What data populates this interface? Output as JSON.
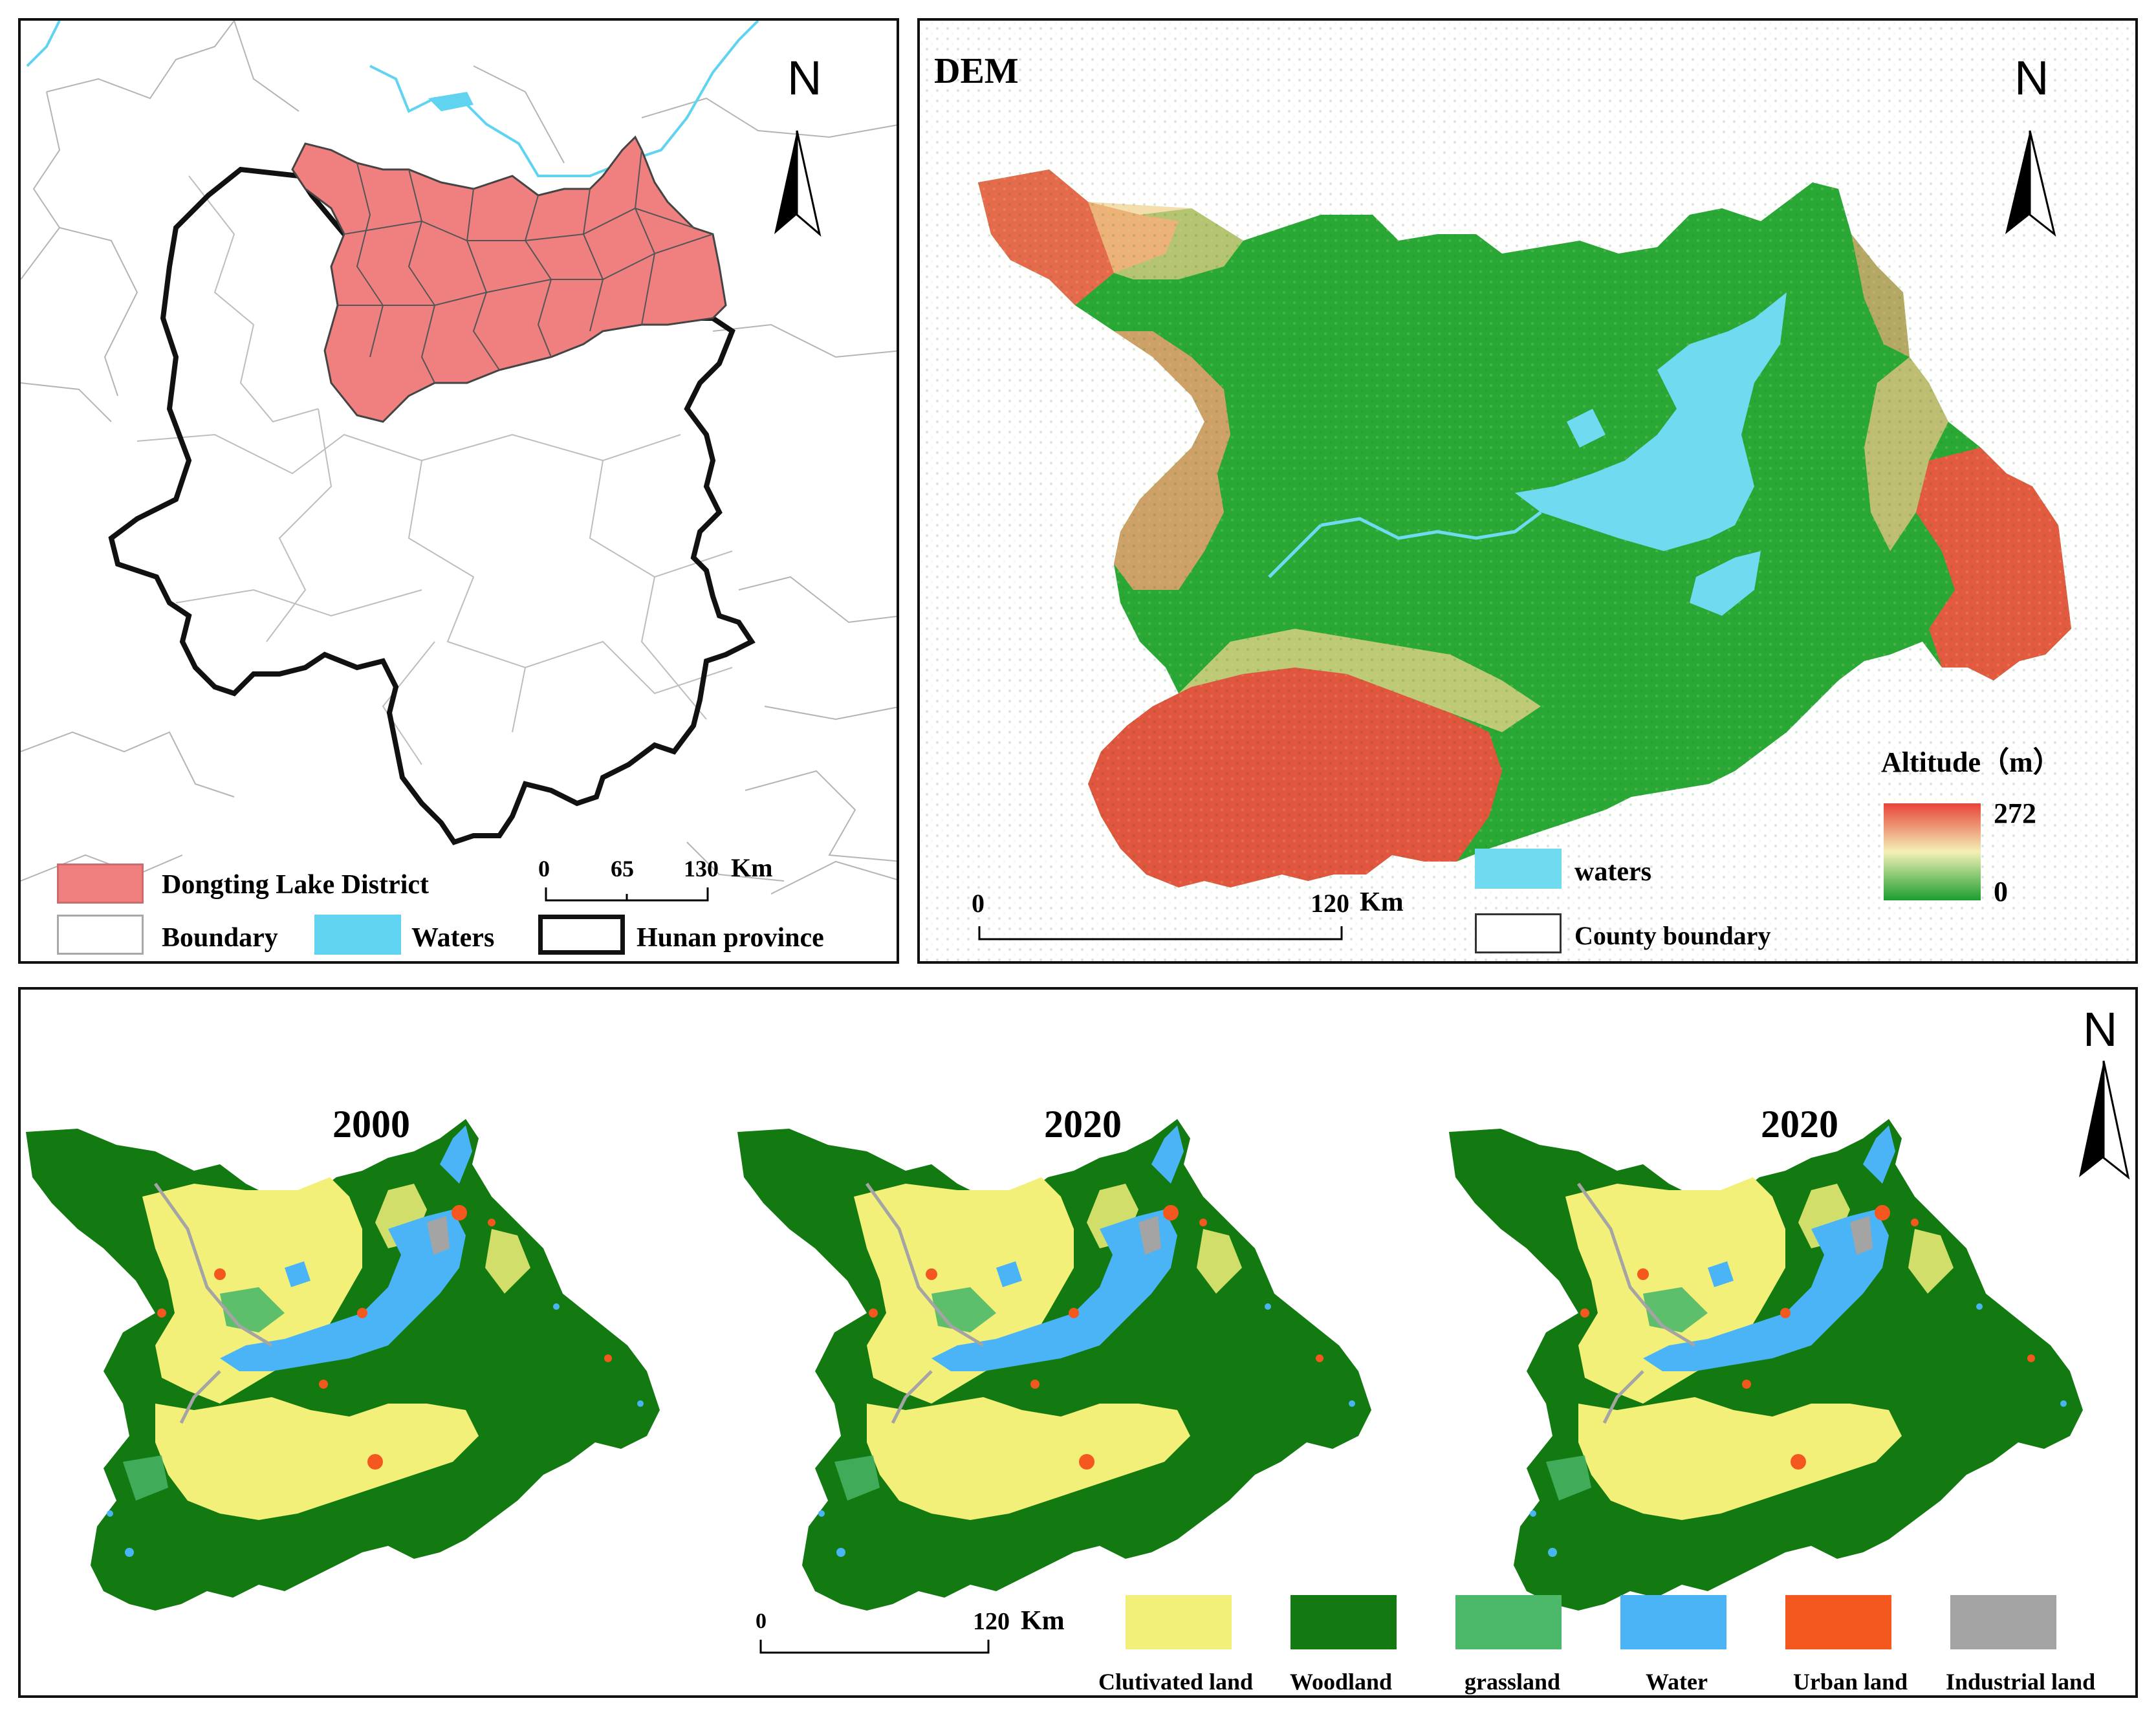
{
  "panel_location": {
    "north_label": "N",
    "legend": {
      "dongting": "Dongting Lake District",
      "boundary": "Boundary",
      "waters": "Waters",
      "hunan": "Hunan province"
    },
    "scale": {
      "ticks": [
        "0",
        "65",
        "130"
      ],
      "unit": "Km"
    },
    "colors": {
      "dongting": "#f08080",
      "waters": "#5fd3f0",
      "hunan_outline": "#111111"
    }
  },
  "panel_dem": {
    "title": "DEM",
    "north_label": "N",
    "legend": {
      "title": "Altitude（m）",
      "max": "272",
      "min": "0",
      "waters": "waters",
      "county": "County boundary"
    },
    "scale": {
      "ticks": [
        "0",
        "120"
      ],
      "unit": "Km"
    },
    "colors": {
      "high": "#e8433a",
      "mid": "#f4f0b6",
      "low": "#1a9e2e",
      "waters": "#6fdaf0"
    }
  },
  "panel_landuse": {
    "north_label": "N",
    "maps": [
      {
        "year": "2000"
      },
      {
        "year": "2020"
      },
      {
        "year": "2020"
      }
    ],
    "scale": {
      "ticks": [
        "0",
        "120"
      ],
      "unit": "Km"
    },
    "legend": [
      {
        "label": "Clutivated land",
        "color": "#f3f07a"
      },
      {
        "label": "Woodland",
        "color": "#127a10"
      },
      {
        "label": "grassland",
        "color": "#4cb86a"
      },
      {
        "label": "Water",
        "color": "#4ab4f6"
      },
      {
        "label": "Urban land",
        "color": "#f4581e"
      },
      {
        "label": "Industrial land",
        "color": "#a4a4a4"
      }
    ]
  }
}
